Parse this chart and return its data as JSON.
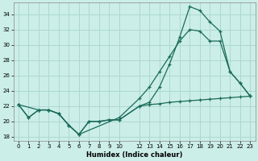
{
  "xlabel": "Humidex (Indice chaleur)",
  "background_color": "#cceee8",
  "grid_color": "#aad8d0",
  "line_color": "#1a6b5a",
  "xlim": [
    -0.5,
    23.5
  ],
  "ylim": [
    17.5,
    35.5
  ],
  "yticks": [
    18,
    20,
    22,
    24,
    26,
    28,
    30,
    32,
    34
  ],
  "xticks": [
    0,
    1,
    2,
    3,
    4,
    5,
    6,
    7,
    8,
    9,
    10,
    12,
    13,
    14,
    15,
    16,
    17,
    18,
    19,
    20,
    21,
    22,
    23
  ],
  "line1_x": [
    0,
    1,
    2,
    3,
    4,
    5,
    6,
    7,
    8,
    9,
    10,
    12,
    13,
    14,
    15,
    16,
    17,
    18,
    19,
    20,
    21,
    22,
    23
  ],
  "line1_y": [
    22.2,
    20.5,
    21.5,
    21.5,
    21.0,
    19.5,
    18.3,
    20.0,
    20.0,
    20.2,
    20.2,
    22.0,
    22.2,
    22.3,
    22.5,
    22.6,
    22.7,
    22.8,
    22.9,
    23.0,
    23.1,
    23.2,
    23.3
  ],
  "line2_x": [
    0,
    1,
    2,
    3,
    4,
    5,
    6,
    7,
    8,
    9,
    10,
    12,
    13,
    14,
    15,
    16,
    17,
    18,
    19,
    20,
    21,
    22,
    23
  ],
  "line2_y": [
    22.2,
    20.5,
    21.5,
    21.5,
    21.0,
    19.5,
    18.3,
    20.0,
    20.0,
    20.2,
    20.2,
    22.0,
    22.5,
    24.5,
    27.5,
    31.0,
    35.0,
    34.5,
    33.0,
    31.8,
    26.5,
    25.0,
    23.3
  ],
  "line3_x": [
    0,
    2,
    3,
    4,
    5,
    6,
    10,
    12,
    13,
    14,
    15,
    16,
    17,
    18,
    19,
    20,
    21,
    22,
    23
  ],
  "line3_y": [
    22.2,
    21.5,
    21.5,
    21.0,
    19.5,
    18.3,
    20.5,
    23.0,
    24.5,
    26.5,
    28.5,
    30.5,
    32.0,
    31.8,
    30.5,
    30.5,
    26.5,
    25.0,
    23.3
  ]
}
